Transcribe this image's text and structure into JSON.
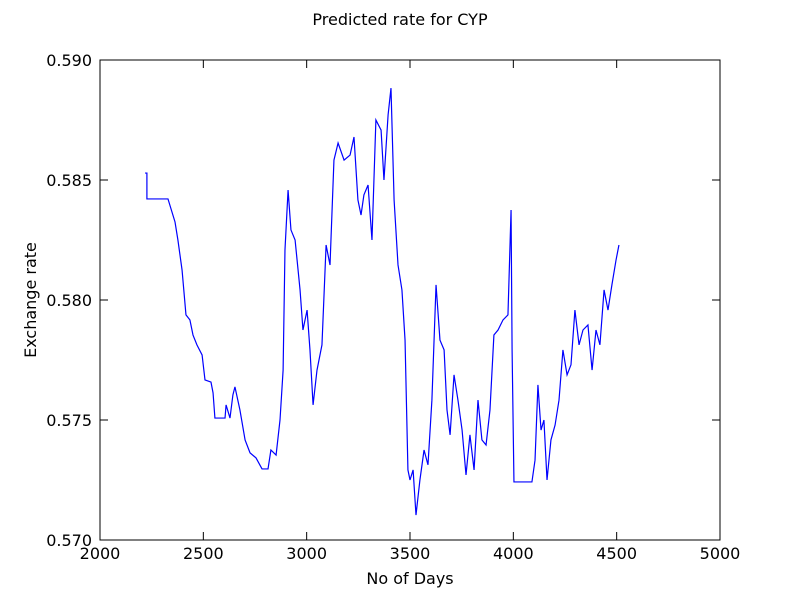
{
  "chart_data": {
    "type": "line",
    "title": "Predicted rate for CYP",
    "xlabel": "No of Days",
    "ylabel": "Exchange rate",
    "color": "#0000ff",
    "xlim": [
      2000,
      5000
    ],
    "xticks": [
      2000,
      2500,
      3000,
      3500,
      4000,
      4500,
      5000
    ],
    "ylim": [
      0.57,
      0.59
    ],
    "yticks": [
      {
        "value": 0.57,
        "label": "0.570"
      },
      0.575,
      {
        "value": 0.58,
        "label": "0.580"
      },
      0.585,
      {
        "value": 0.59,
        "label": "0.590"
      }
    ],
    "x": [
      2218,
      2227,
      2227,
      2329,
      2363,
      2377,
      2397,
      2416,
      2435,
      2450,
      2469,
      2494,
      2508,
      2537,
      2547,
      2556,
      2605,
      2610,
      2629,
      2643,
      2653,
      2677,
      2702,
      2726,
      2755,
      2784,
      2813,
      2827,
      2852,
      2871,
      2886,
      2895,
      2910,
      2924,
      2944,
      2968,
      2982,
      3002,
      3016,
      3031,
      3050,
      3074,
      3094,
      3113,
      3132,
      3152,
      3181,
      3210,
      3229,
      3248,
      3263,
      3277,
      3297,
      3316,
      3335,
      3360,
      3374,
      3394,
      3408,
      3423,
      3442,
      3461,
      3476,
      3490,
      3500,
      3515,
      3529,
      3548,
      3568,
      3587,
      3606,
      3626,
      3645,
      3665,
      3679,
      3694,
      3713,
      3732,
      3752,
      3771,
      3790,
      3810,
      3829,
      3848,
      3868,
      3887,
      3906,
      3926,
      3950,
      3974,
      3989,
      3994,
      4003,
      4090,
      4105,
      4119,
      4134,
      4148,
      4163,
      4182,
      4202,
      4221,
      4240,
      4260,
      4279,
      4298,
      4318,
      4337,
      4361,
      4381,
      4400,
      4419,
      4439,
      4458,
      4477,
      4497,
      4511
    ],
    "values": [
      0.58529,
      0.58529,
      0.58421,
      0.58421,
      0.58325,
      0.5825,
      0.58125,
      0.57938,
      0.57917,
      0.57854,
      0.57813,
      0.57771,
      0.57667,
      0.57658,
      0.57613,
      0.57508,
      0.57508,
      0.57563,
      0.57508,
      0.57604,
      0.57638,
      0.57542,
      0.57417,
      0.57363,
      0.57342,
      0.57296,
      0.57296,
      0.57375,
      0.57354,
      0.575,
      0.57708,
      0.58208,
      0.58458,
      0.58292,
      0.5825,
      0.58042,
      0.57875,
      0.57958,
      0.57792,
      0.57563,
      0.57708,
      0.57813,
      0.58229,
      0.58146,
      0.58583,
      0.58654,
      0.58583,
      0.58604,
      0.58679,
      0.58417,
      0.58354,
      0.58438,
      0.58479,
      0.5825,
      0.5875,
      0.58708,
      0.585,
      0.58771,
      0.58883,
      0.58417,
      0.58146,
      0.58042,
      0.57833,
      0.57292,
      0.5725,
      0.57292,
      0.57104,
      0.5725,
      0.57375,
      0.57313,
      0.57583,
      0.58063,
      0.57833,
      0.57792,
      0.57542,
      0.57438,
      0.57688,
      0.57583,
      0.57458,
      0.57271,
      0.57438,
      0.57292,
      0.57583,
      0.57417,
      0.57396,
      0.57542,
      0.57854,
      0.57875,
      0.57917,
      0.57938,
      0.58375,
      0.57792,
      0.57242,
      0.57242,
      0.57333,
      0.57646,
      0.57458,
      0.575,
      0.5725,
      0.57417,
      0.57479,
      0.57583,
      0.57792,
      0.57688,
      0.5773,
      0.57958,
      0.57813,
      0.57875,
      0.57896,
      0.57708,
      0.57875,
      0.57813,
      0.58042,
      0.57958,
      0.58063,
      0.58167,
      0.58229
    ]
  }
}
